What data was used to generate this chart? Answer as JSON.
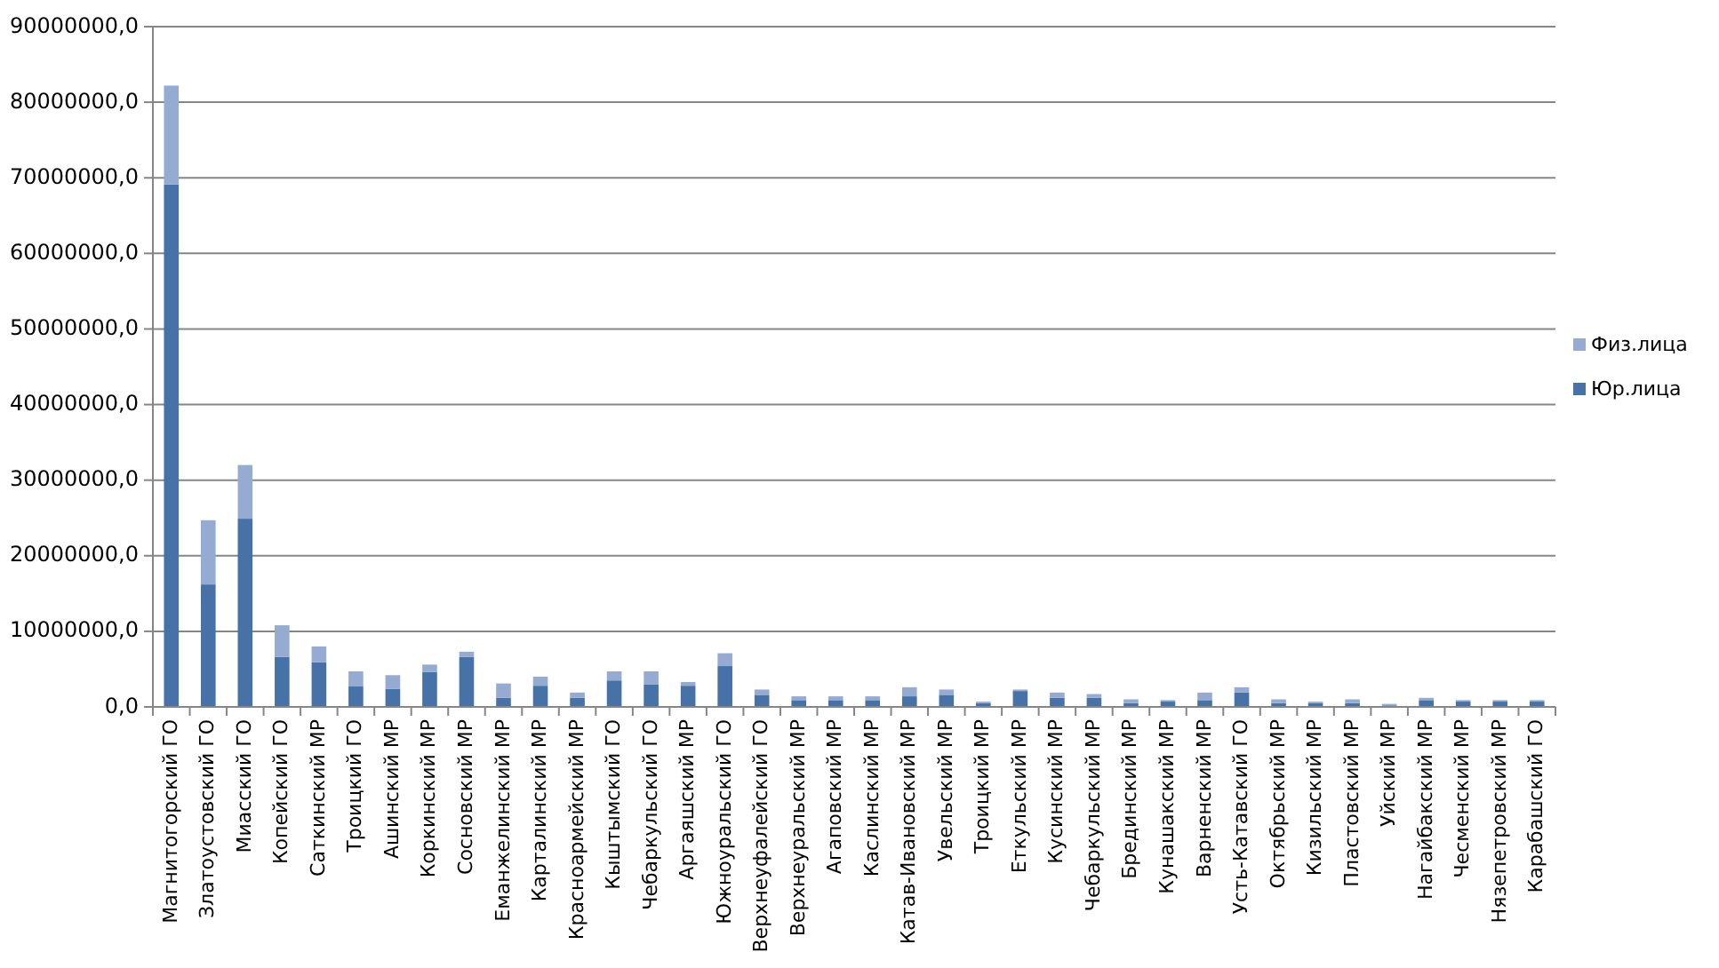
{
  "chart_data": {
    "type": "bar",
    "stacked": true,
    "grid": "y",
    "legend": "right",
    "categories": [
      "Магнитогорский ГО",
      "Златоустовский ГО",
      "Миасский ГО",
      "Копейский ГО",
      "Саткинский МР",
      "Троицкий ГО",
      "Ашинский МР",
      "Коркинский МР",
      "Сосновский МР",
      "Еманжелинский МР",
      "Карталинский МР",
      "Красноармейский МР",
      "Кыштымский ГО",
      "Чебаркульский ГО",
      "Аргаяшский МР",
      "Южноуральский ГО",
      "Верхнеуфалейский ГО",
      "Верхнеуральский МР",
      "Агаповский МР",
      "Каслинский МР",
      "Катав-Ивановский МР",
      "Увельский МР",
      "Троицкий МР",
      "Еткульский МР",
      "Кусинский МР",
      "Чебаркульский МР",
      "Брединский МР",
      "Кунашакский МР",
      "Варненский МР",
      "Усть-Катавский ГО",
      "Октябрьский МР",
      "Кизильский МР",
      "Пластовский МР",
      "Уйский МР",
      "Нагайбакский МР",
      "Чесменский МР",
      "Нязепетровский МР",
      "Карабашский ГО"
    ],
    "series": [
      {
        "name": "Юр.лица",
        "color": "#4672a8",
        "values": [
          69100000,
          16200000,
          24900000,
          6600000,
          5900000,
          2700000,
          2400000,
          4600000,
          6600000,
          1200000,
          2800000,
          1200000,
          3500000,
          3000000,
          2800000,
          5400000,
          1600000,
          900000,
          900000,
          900000,
          1400000,
          1600000,
          500000,
          2100000,
          1200000,
          1200000,
          500000,
          700000,
          900000,
          1900000,
          500000,
          500000,
          500000,
          200000,
          900000,
          700000,
          700000,
          700000
        ]
      },
      {
        "name": "Физ.лица",
        "color": "#96abd2",
        "values": [
          13100000,
          8500000,
          7100000,
          4200000,
          2100000,
          2000000,
          1800000,
          1000000,
          700000,
          1900000,
          1200000,
          700000,
          1200000,
          1700000,
          500000,
          1700000,
          700000,
          500000,
          500000,
          500000,
          1200000,
          700000,
          200000,
          200000,
          700000,
          500000,
          500000,
          200000,
          1000000,
          700000,
          500000,
          200000,
          500000,
          200000,
          300000,
          200000,
          200000,
          200000
        ]
      }
    ],
    "ylim": [
      0,
      90000000
    ],
    "yticks": [
      {
        "value": 0,
        "label": "0,0"
      },
      {
        "value": 10000000,
        "label": "10000000,0"
      },
      {
        "value": 20000000,
        "label": "20000000,0"
      },
      {
        "value": 30000000,
        "label": "30000000,0"
      },
      {
        "value": 40000000,
        "label": "40000000,0"
      },
      {
        "value": 50000000,
        "label": "50000000,0"
      },
      {
        "value": 60000000,
        "label": "60000000,0"
      },
      {
        "value": 70000000,
        "label": "70000000,0"
      },
      {
        "value": 80000000,
        "label": "80000000,0"
      },
      {
        "value": 90000000,
        "label": "90000000,0"
      }
    ]
  }
}
